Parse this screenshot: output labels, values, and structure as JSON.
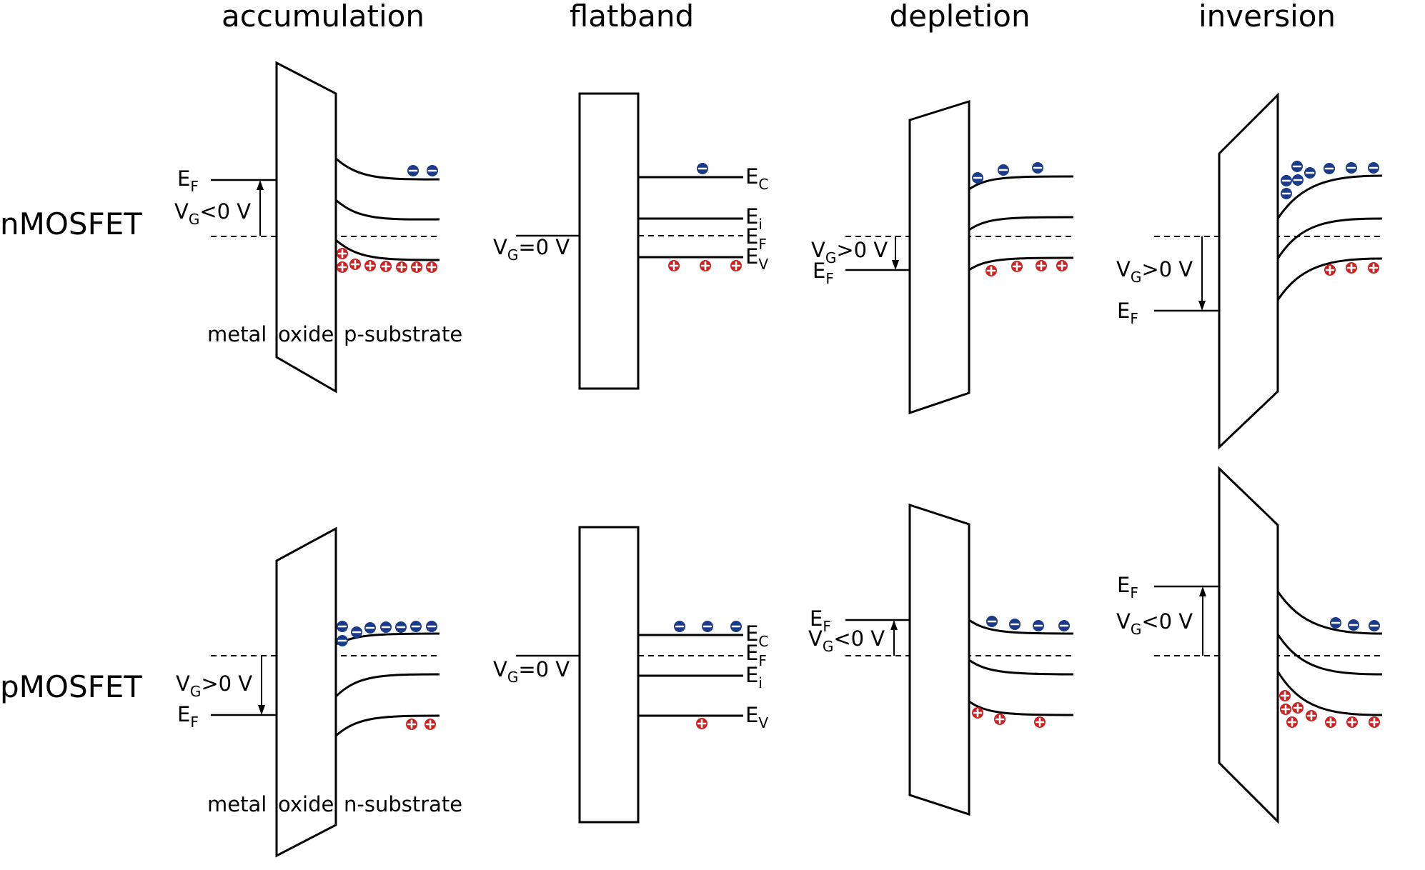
{
  "column_headers": {
    "accumulation": "accumulation",
    "flatband": "flatband",
    "depletion": "depletion",
    "inversion": "inversion"
  },
  "row_labels": {
    "nmos": "nMOSFET",
    "pmos": "pMOSFET"
  },
  "layer_labels": {
    "metal": "metal",
    "oxide": "oxide",
    "p_substrate": "p-substrate",
    "n_substrate": "n-substrate"
  },
  "energy_levels": {
    "E": "E",
    "V": "V",
    "C_sub": "C",
    "i_sub": "i",
    "F_sub": "F",
    "V_sub": "V",
    "G_sub": "G"
  },
  "voltages": {
    "lt0": "<0 V",
    "gt0": ">0 V",
    "eq0": "=0 V"
  },
  "carriers": {
    "electron_symbol": "−",
    "hole_symbol": "+"
  },
  "colors": {
    "electron": "#1a3a8a",
    "hole": "#cc2222"
  }
}
